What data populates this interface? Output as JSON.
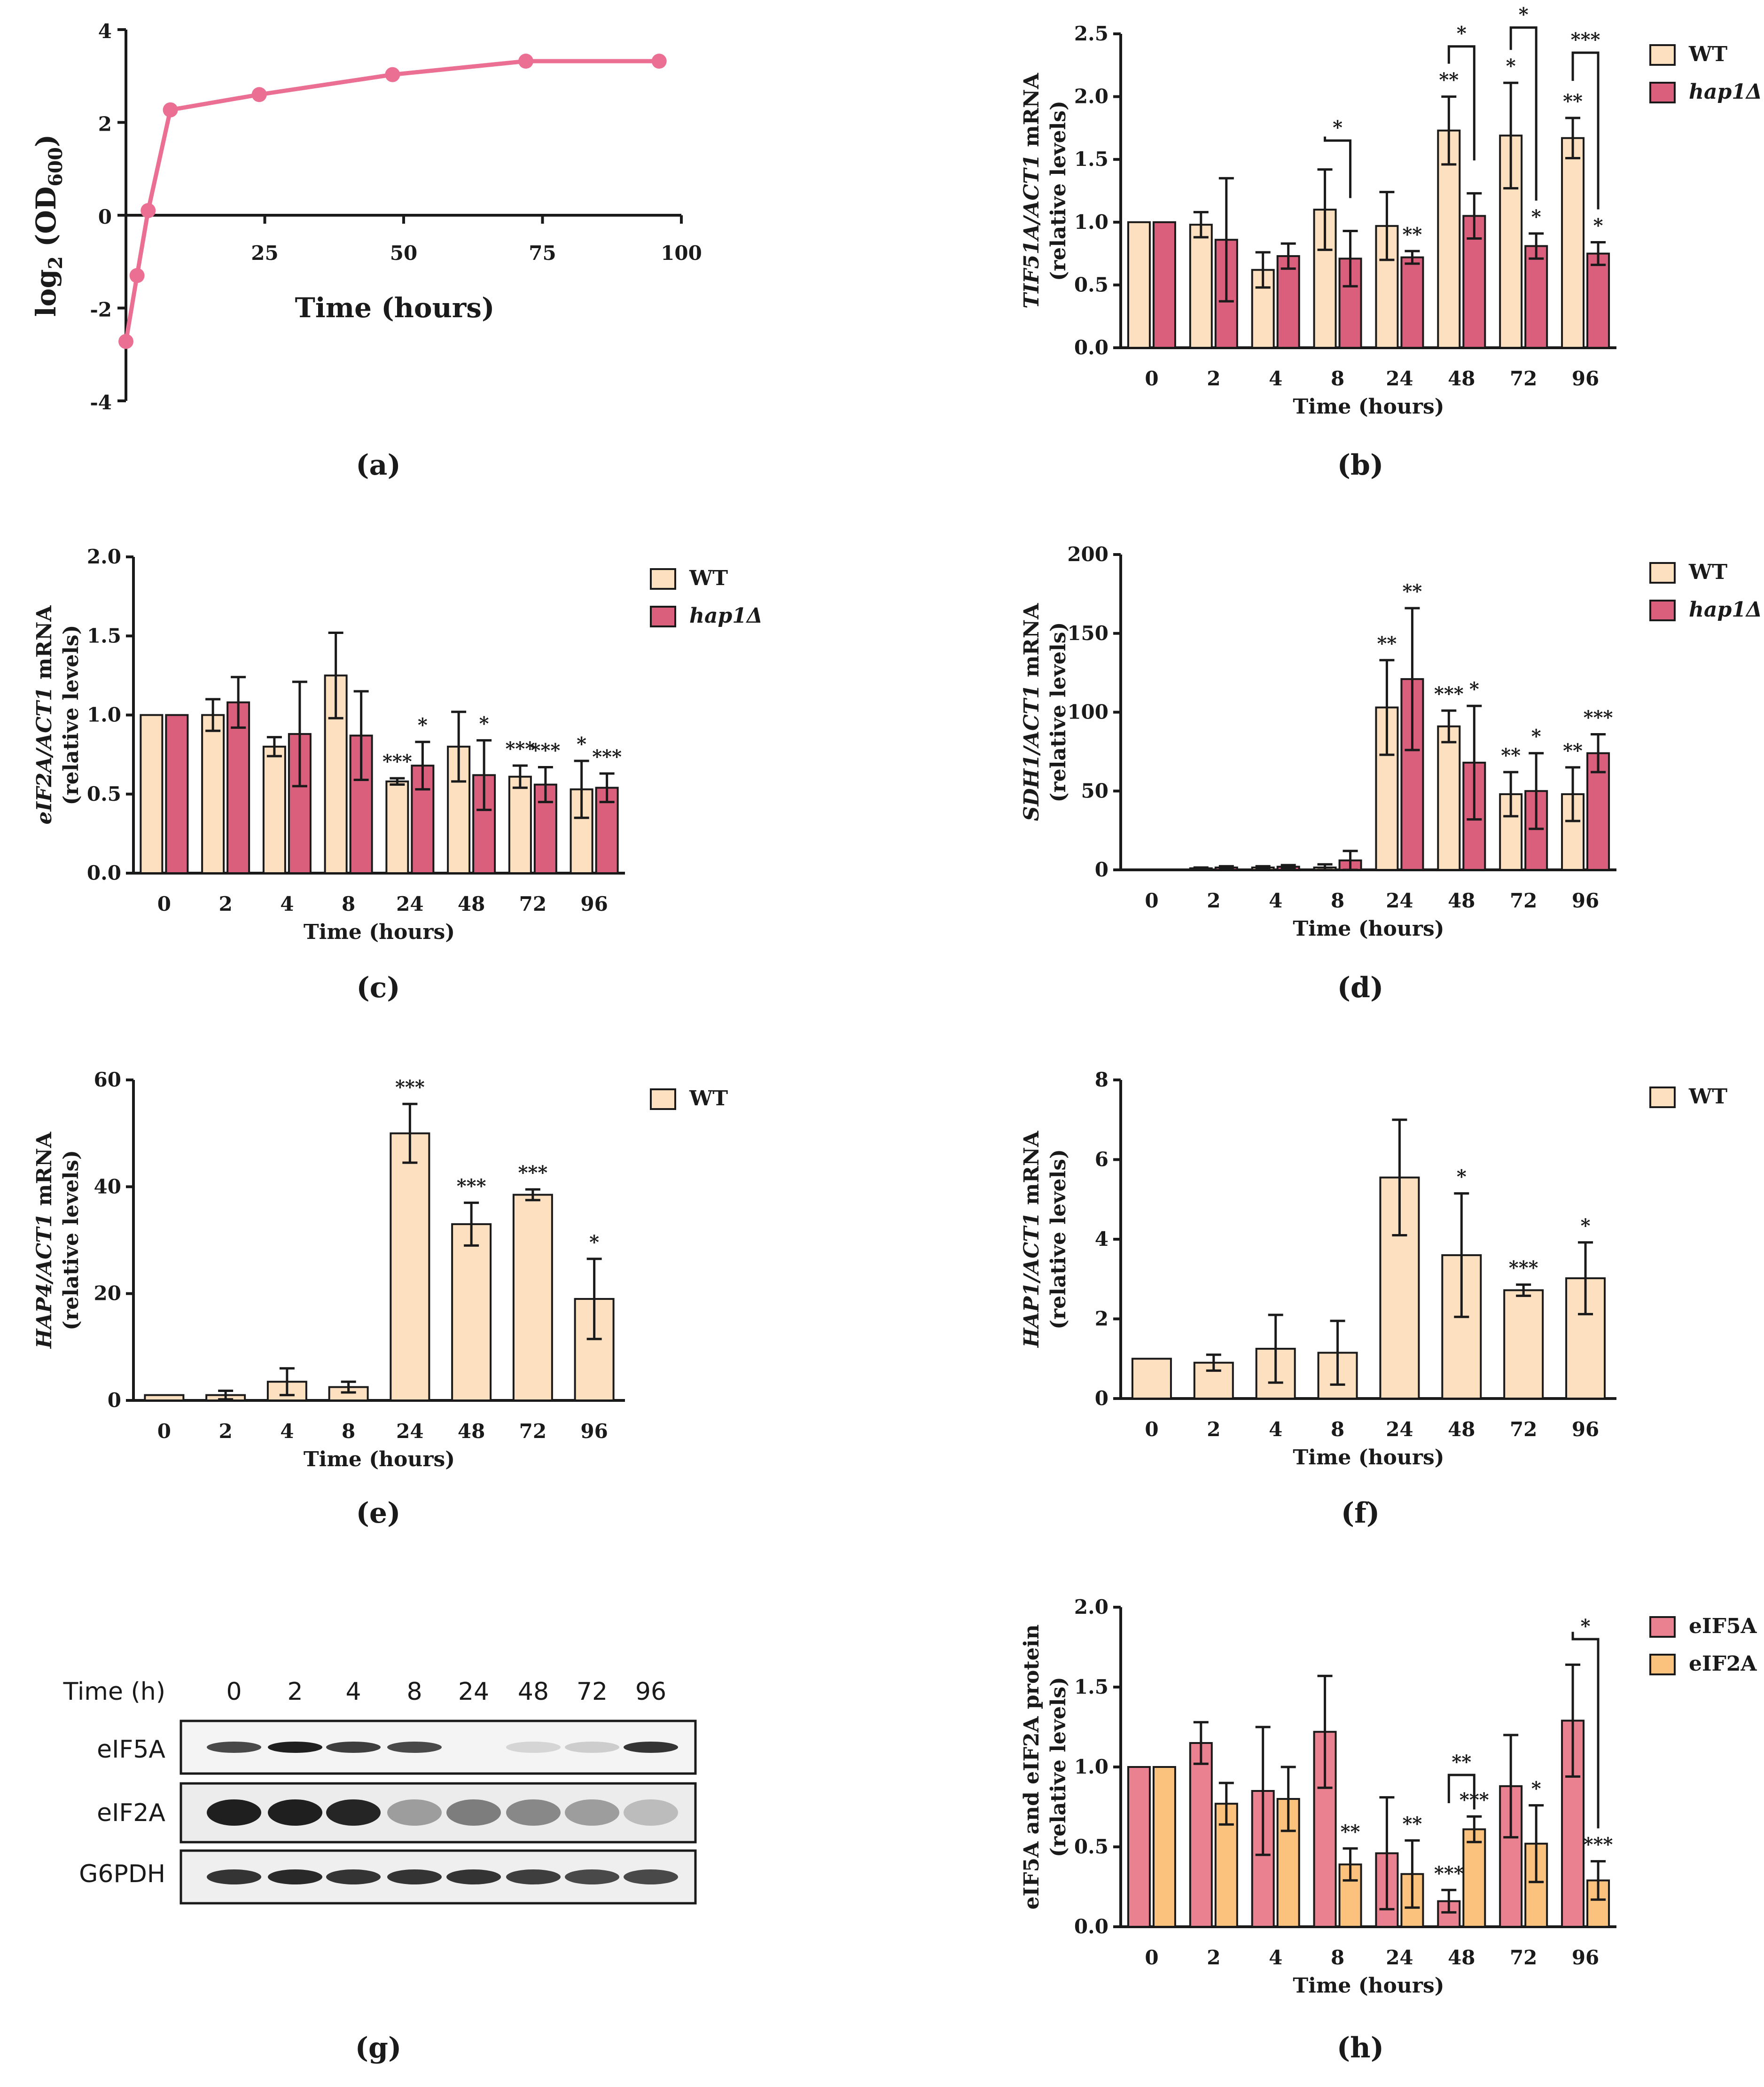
{
  "colors": {
    "wt": "#fde0c0",
    "hap1": "#d95f7c",
    "line_a": "#ea6f93",
    "eif5a": "#ea8191",
    "eif2a": "#fbc27d",
    "axis": "#1a1a1a"
  },
  "chart_data": [
    {
      "panel": "a",
      "panel_label": "(a)",
      "type": "line",
      "xlabel": "Time (hours)",
      "ylabel_main": "log",
      "ylabel_sub1": "2",
      "ylabel_mid": " (OD",
      "ylabel_sub2": "600",
      "ylabel_end": ")",
      "xlim": [
        0,
        100
      ],
      "ylim": [
        -4,
        4
      ],
      "xticks": [
        25,
        50,
        75,
        100
      ],
      "yticks": [
        4,
        2,
        0,
        -2,
        -4
      ],
      "series": [
        {
          "name": "growth",
          "x": [
            0,
            2,
            4,
            8,
            24,
            48,
            72,
            96
          ],
          "y": [
            -2.72,
            -1.3,
            0.1,
            2.27,
            2.6,
            3.03,
            3.32,
            3.32
          ]
        }
      ]
    },
    {
      "panel": "b",
      "panel_label": "(b)",
      "type": "bar",
      "ylabel_gene": "TIF51A/ACT1",
      "ylabel_rest": " mRNA",
      "ylabel2": "(relative levels)",
      "xlabel": "Time (hours)",
      "categories": [
        "0",
        "2",
        "4",
        "8",
        "24",
        "48",
        "72",
        "96"
      ],
      "ylim": [
        0,
        2.5
      ],
      "yticks": [
        "0.0",
        "0.5",
        "1.0",
        "1.5",
        "2.0",
        "2.5"
      ],
      "legend": [
        "WT",
        "hap1Δ"
      ],
      "series": [
        {
          "name": "WT",
          "values": [
            1.0,
            0.98,
            0.62,
            1.1,
            0.97,
            1.73,
            1.69,
            1.67
          ],
          "errors": [
            0,
            0.1,
            0.14,
            0.32,
            0.27,
            0.27,
            0.42,
            0.16
          ],
          "sig": [
            "",
            "",
            "",
            "",
            "",
            "**",
            "*",
            "**"
          ]
        },
        {
          "name": "hap1Δ",
          "values": [
            1.0,
            0.86,
            0.73,
            0.71,
            0.72,
            1.05,
            0.81,
            0.75
          ],
          "errors": [
            0,
            0.49,
            0.1,
            0.22,
            0.05,
            0.18,
            0.1,
            0.09
          ],
          "sig": [
            "",
            "",
            "",
            "",
            "**",
            "",
            "*",
            "*"
          ]
        }
      ],
      "brackets": [
        {
          "category": "8",
          "label": "*",
          "y": 1.65
        },
        {
          "category": "48",
          "label": "*",
          "y": 2.4
        },
        {
          "category": "72",
          "label": "*",
          "y": 2.55
        },
        {
          "category": "96",
          "label": "***",
          "y": 2.35
        }
      ]
    },
    {
      "panel": "c",
      "panel_label": "(c)",
      "type": "bar",
      "ylabel_gene": "eIF2A/ACT1",
      "ylabel_rest": " mRNA",
      "ylabel2": "(relative levels)",
      "xlabel": "Time (hours)",
      "categories": [
        "0",
        "2",
        "4",
        "8",
        "24",
        "48",
        "72",
        "96"
      ],
      "ylim": [
        0,
        2.0
      ],
      "yticks": [
        "0.0",
        "0.5",
        "1.0",
        "1.5",
        "2.0"
      ],
      "legend": [
        "WT",
        "hap1Δ"
      ],
      "series": [
        {
          "name": "WT",
          "values": [
            1.0,
            1.0,
            0.8,
            1.25,
            0.58,
            0.8,
            0.61,
            0.53
          ],
          "errors": [
            0,
            0.1,
            0.06,
            0.27,
            0.02,
            0.22,
            0.07,
            0.18
          ],
          "sig": [
            "",
            "",
            "",
            "",
            "***",
            "",
            "***",
            "*"
          ]
        },
        {
          "name": "hap1Δ",
          "values": [
            1.0,
            1.08,
            0.88,
            0.87,
            0.68,
            0.62,
            0.56,
            0.54
          ],
          "errors": [
            0,
            0.16,
            0.33,
            0.28,
            0.15,
            0.22,
            0.11,
            0.09
          ],
          "sig": [
            "",
            "",
            "",
            "",
            "*",
            "*",
            "***",
            "***"
          ]
        }
      ],
      "brackets": []
    },
    {
      "panel": "d",
      "panel_label": "(d)",
      "type": "bar",
      "ylabel_gene": "SDH1/ACT1",
      "ylabel_rest": " mRNA",
      "ylabel2": "(relative levels)",
      "xlabel": "Time (hours)",
      "categories": [
        "0",
        "2",
        "4",
        "8",
        "24",
        "48",
        "72",
        "96"
      ],
      "ylim": [
        0,
        200
      ],
      "yticks": [
        "0",
        "50",
        "100",
        "150",
        "200"
      ],
      "legend": [
        "WT",
        "hap1Δ"
      ],
      "series": [
        {
          "name": "WT",
          "values": [
            0,
            1,
            1.5,
            1.5,
            103,
            91,
            48,
            48
          ],
          "errors": [
            0,
            0.5,
            0.8,
            2,
            30,
            10,
            14,
            17
          ],
          "sig": [
            "",
            "",
            "",
            "",
            "**",
            "***",
            "**",
            "**"
          ]
        },
        {
          "name": "hap1Δ",
          "values": [
            0,
            1.5,
            2,
            6,
            121,
            68,
            50,
            74
          ],
          "errors": [
            0,
            0.8,
            1,
            6,
            45,
            36,
            24,
            12
          ],
          "sig": [
            "",
            "",
            "",
            "",
            "**",
            "*",
            "*",
            "***"
          ]
        }
      ],
      "brackets": []
    },
    {
      "panel": "e",
      "panel_label": "(e)",
      "type": "bar",
      "ylabel_gene": "HAP4/ACT1",
      "ylabel_rest": " mRNA",
      "ylabel2": "(relative levels)",
      "xlabel": "Time (hours)",
      "categories": [
        "0",
        "2",
        "4",
        "8",
        "24",
        "48",
        "72",
        "96"
      ],
      "ylim": [
        0,
        60
      ],
      "yticks": [
        "0",
        "20",
        "40",
        "60"
      ],
      "legend": [
        "WT"
      ],
      "series": [
        {
          "name": "WT",
          "values": [
            1,
            1,
            3.5,
            2.5,
            50,
            33,
            38.5,
            19
          ],
          "errors": [
            0,
            0.8,
            2.5,
            1,
            5.5,
            4,
            1,
            7.5
          ],
          "sig": [
            "",
            "",
            "",
            "",
            "***",
            "***",
            "***",
            "*"
          ]
        }
      ],
      "brackets": []
    },
    {
      "panel": "f",
      "panel_label": "(f)",
      "type": "bar",
      "ylabel_gene": "HAP1/ACT1",
      "ylabel_rest": " mRNA",
      "ylabel2": "(relative levels)",
      "xlabel": "Time (hours)",
      "categories": [
        "0",
        "2",
        "4",
        "8",
        "24",
        "48",
        "72",
        "96"
      ],
      "ylim": [
        0,
        8
      ],
      "yticks": [
        "0",
        "2",
        "4",
        "6",
        "8"
      ],
      "legend": [
        "WT"
      ],
      "series": [
        {
          "name": "WT",
          "values": [
            1,
            0.9,
            1.25,
            1.15,
            5.55,
            3.6,
            2.72,
            3.02
          ],
          "errors": [
            0,
            0.2,
            0.85,
            0.8,
            1.45,
            1.55,
            0.14,
            0.9
          ],
          "sig": [
            "",
            "",
            "",
            "",
            "",
            "*",
            "***",
            "*"
          ]
        }
      ],
      "brackets": []
    },
    {
      "panel": "h",
      "panel_label": "(h)",
      "type": "bar",
      "ylabel_gene": "eIF5A and eIF2A protein",
      "ylabel_rest": "",
      "ylabel2": "(relative levels)",
      "xlabel": "Time (hours)",
      "categories": [
        "0",
        "2",
        "4",
        "8",
        "24",
        "48",
        "72",
        "96"
      ],
      "ylim": [
        0,
        2.0
      ],
      "yticks": [
        "0.0",
        "0.5",
        "1.0",
        "1.5",
        "2.0"
      ],
      "legend": [
        "eIF5A",
        "eIF2A"
      ],
      "series": [
        {
          "name": "eIF5A",
          "values": [
            1.0,
            1.15,
            0.85,
            1.22,
            0.46,
            0.16,
            0.88,
            1.29
          ],
          "errors": [
            0,
            0.13,
            0.4,
            0.35,
            0.35,
            0.07,
            0.32,
            0.35
          ],
          "sig": [
            "",
            "",
            "",
            "",
            "",
            "***",
            "",
            ""
          ]
        },
        {
          "name": "eIF2A",
          "values": [
            1.0,
            0.77,
            0.8,
            0.39,
            0.33,
            0.61,
            0.52,
            0.29
          ],
          "errors": [
            0,
            0.13,
            0.2,
            0.1,
            0.21,
            0.08,
            0.24,
            0.12
          ],
          "sig": [
            "",
            "",
            "",
            "**",
            "**",
            "***",
            "*",
            "***"
          ]
        }
      ],
      "brackets": [
        {
          "category": "48",
          "label": "**",
          "y": 0.95,
          "span": "low"
        },
        {
          "category": "96",
          "label": "*",
          "y": 1.8
        }
      ]
    }
  ],
  "panel_g": {
    "label": "(g)",
    "time_header": "Time (h)",
    "lanes": [
      "0",
      "2",
      "4",
      "8",
      "24",
      "48",
      "72",
      "96"
    ],
    "rows": [
      {
        "name": "eIF5A",
        "intensity": [
          0.75,
          0.95,
          0.8,
          0.75,
          0.0,
          0.08,
          0.12,
          0.85
        ]
      },
      {
        "name": "eIF2A",
        "intensity": [
          0.95,
          0.95,
          0.92,
          0.35,
          0.5,
          0.45,
          0.35,
          0.2
        ]
      },
      {
        "name": "G6PDH",
        "intensity": [
          0.85,
          0.9,
          0.85,
          0.85,
          0.85,
          0.8,
          0.75,
          0.75
        ]
      }
    ]
  }
}
